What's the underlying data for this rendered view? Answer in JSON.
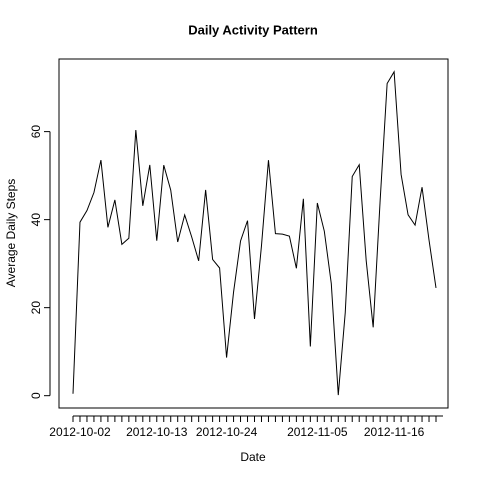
{
  "chart_data": {
    "type": "line",
    "title": "Daily Activity Pattern",
    "xlabel": "Date",
    "ylabel": "Average Daily Steps",
    "categories": [
      null,
      "2012-10-02",
      null,
      null,
      null,
      null,
      null,
      null,
      null,
      null,
      null,
      null,
      "2012-10-13",
      null,
      null,
      null,
      null,
      null,
      null,
      null,
      null,
      null,
      "2012-10-24",
      null,
      null,
      null,
      null,
      null,
      null,
      null,
      null,
      null,
      null,
      null,
      null,
      "2012-11-05",
      null,
      null,
      null,
      null,
      null,
      null,
      null,
      null,
      null,
      null,
      "2012-11-16",
      null,
      null,
      null,
      null,
      null,
      null
    ],
    "values": [
      0.44,
      39.42,
      42.07,
      46.16,
      53.54,
      38.25,
      44.48,
      34.38,
      35.78,
      60.35,
      43.15,
      52.42,
      35.2,
      52.38,
      46.71,
      34.92,
      41.07,
      36.09,
      30.63,
      46.74,
      30.97,
      29.01,
      8.65,
      23.53,
      35.14,
      39.78,
      17.42,
      34.09,
      53.52,
      36.81,
      36.7,
      36.25,
      28.94,
      44.73,
      11.18,
      43.78,
      37.38,
      25.47,
      0.14,
      18.89,
      49.79,
      52.47,
      30.7,
      15.53,
      44.4,
      70.93,
      73.59,
      50.27,
      41.09,
      38.76,
      47.38,
      35.36,
      24.47
    ],
    "color": "#000000",
    "ylim": [
      -2.8,
      76.5
    ],
    "yticks": [
      0,
      20,
      40,
      60
    ]
  }
}
